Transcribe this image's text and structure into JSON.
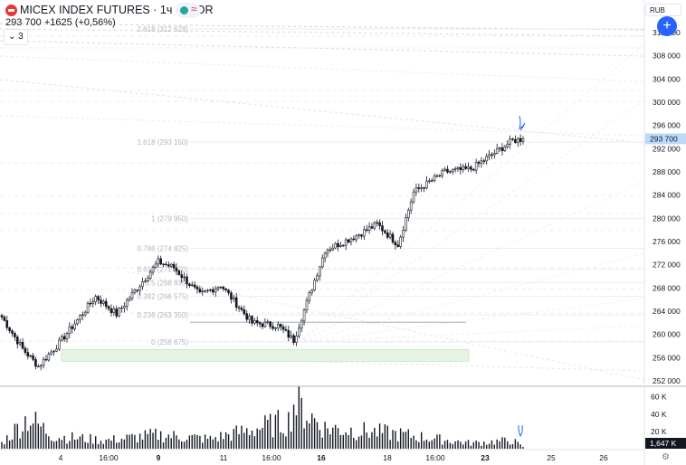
{
  "header": {
    "title": "MICEX INDEX FUTURES · 1ч · ALOR",
    "quote_price": "293 700",
    "quote_change": "+1625 (+0,56%)",
    "collapse_count": "3",
    "currency": "RUB",
    "add_label": "+"
  },
  "colors": {
    "up": "#131722",
    "down": "#131722",
    "accent": "#2962ff",
    "price_tag": "#bbd9fb",
    "volume": "#131722",
    "zone": "#e7f5e4"
  },
  "chart_data": {
    "type": "candlestick",
    "price_axis": {
      "ticks": [
        "312 000",
        "308 000",
        "304 000",
        "300 000",
        "296 000",
        "292 000",
        "288 000",
        "284 000",
        "280 000",
        "276 000",
        "272 000",
        "268 000",
        "264 000",
        "260 000",
        "256 000",
        "252 000"
      ],
      "ylim": [
        251000,
        314000
      ]
    },
    "last_price_label": "293 700",
    "volume_axis": {
      "ticks": [
        "60 K",
        "40 K",
        "20 K"
      ],
      "ylim": [
        0,
        68000
      ]
    },
    "last_volume_label": "1,647 K",
    "time_axis": [
      {
        "label": "4",
        "bold": false
      },
      {
        "label": "16:00",
        "bold": false
      },
      {
        "label": "9",
        "bold": true
      },
      {
        "label": "11",
        "bold": false
      },
      {
        "label": "16:00",
        "bold": false
      },
      {
        "label": "16",
        "bold": true
      },
      {
        "label": "18",
        "bold": false
      },
      {
        "label": "16:00",
        "bold": false
      },
      {
        "label": "23",
        "bold": true
      },
      {
        "label": "25",
        "bold": false
      },
      {
        "label": "26",
        "bold": false
      }
    ],
    "fib_levels": [
      {
        "label": "2.618 (312 628)",
        "value": 312628
      },
      {
        "label": "1.618 (293 150)",
        "value": 293150
      },
      {
        "label": "1 (279 950)",
        "value": 279950
      },
      {
        "label": "0.786 (274 825)",
        "value": 274825
      },
      {
        "label": "0.618 (271 270)",
        "value": 271270
      },
      {
        "label": "0.5 (268 935)",
        "value": 268935
      },
      {
        "label": "0.382 (266 575)",
        "value": 266575
      },
      {
        "label": "0.236 (263 350)",
        "value": 263350
      },
      {
        "label": "0 (258 675)",
        "value": 258675
      }
    ],
    "key_points": [
      {
        "x": 0,
        "close": 263000
      },
      {
        "x": 8,
        "close": 257500
      },
      {
        "x": 14,
        "close": 254500
      },
      {
        "x": 22,
        "close": 258500
      },
      {
        "x": 36,
        "close": 266500
      },
      {
        "x": 44,
        "close": 263500
      },
      {
        "x": 60,
        "close": 272500
      },
      {
        "x": 66,
        "close": 271500
      },
      {
        "x": 76,
        "close": 266800
      },
      {
        "x": 84,
        "close": 268500
      },
      {
        "x": 96,
        "close": 262000
      },
      {
        "x": 106,
        "close": 261500
      },
      {
        "x": 112,
        "close": 259000
      },
      {
        "x": 124,
        "close": 274500
      },
      {
        "x": 136,
        "close": 277000
      },
      {
        "x": 144,
        "close": 279000
      },
      {
        "x": 152,
        "close": 275500
      },
      {
        "x": 158,
        "close": 284500
      },
      {
        "x": 170,
        "close": 288000
      },
      {
        "x": 180,
        "close": 288500
      },
      {
        "x": 196,
        "close": 293400
      },
      {
        "x": 200,
        "close": 293700
      }
    ],
    "volume_profile": [
      {
        "x": 0,
        "v": 8000
      },
      {
        "x": 10,
        "v": 45000
      },
      {
        "x": 20,
        "v": 18000
      },
      {
        "x": 40,
        "v": 12000
      },
      {
        "x": 60,
        "v": 20000
      },
      {
        "x": 80,
        "v": 14000
      },
      {
        "x": 110,
        "v": 40000
      },
      {
        "x": 112,
        "v": 66000
      },
      {
        "x": 124,
        "v": 30000
      },
      {
        "x": 150,
        "v": 22000
      },
      {
        "x": 180,
        "v": 8000
      },
      {
        "x": 196,
        "v": 12000
      },
      {
        "x": 200,
        "v": 2000
      }
    ]
  }
}
